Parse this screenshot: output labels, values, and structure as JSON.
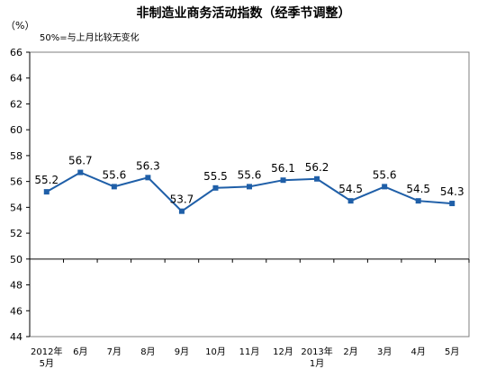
{
  "chart_data": {
    "type": "line",
    "title": "非制造业商务活动指数（经季节调整）",
    "unit_label": "（%）",
    "note": "50%=与上月比较无变化",
    "categories": [
      [
        "2012年",
        "5月"
      ],
      [
        "6月"
      ],
      [
        "7月"
      ],
      [
        "8月"
      ],
      [
        "9月"
      ],
      [
        "10月"
      ],
      [
        "11月"
      ],
      [
        "12月"
      ],
      [
        "2013年",
        "1月"
      ],
      [
        "2月"
      ],
      [
        "3月"
      ],
      [
        "4月"
      ],
      [
        "5月"
      ]
    ],
    "values": [
      55.2,
      56.7,
      55.6,
      56.3,
      53.7,
      55.5,
      55.6,
      56.1,
      56.2,
      54.5,
      55.6,
      54.5,
      54.3
    ],
    "value_labels": [
      "55.2",
      "56.7",
      "55.6",
      "56.3",
      "53.7",
      "55.5",
      "55.6",
      "56.1",
      "56.2",
      "54.5",
      "55.6",
      "54.5",
      "54.3"
    ],
    "ylim": [
      44,
      66
    ],
    "yticks": [
      44,
      46,
      48,
      50,
      52,
      54,
      56,
      58,
      60,
      62,
      64,
      66
    ],
    "reference_line": 50,
    "colors": {
      "line": "#1f5fa8",
      "marker": "#1f5fa8",
      "axis": "#000000",
      "border": "#7f7f7f"
    }
  }
}
